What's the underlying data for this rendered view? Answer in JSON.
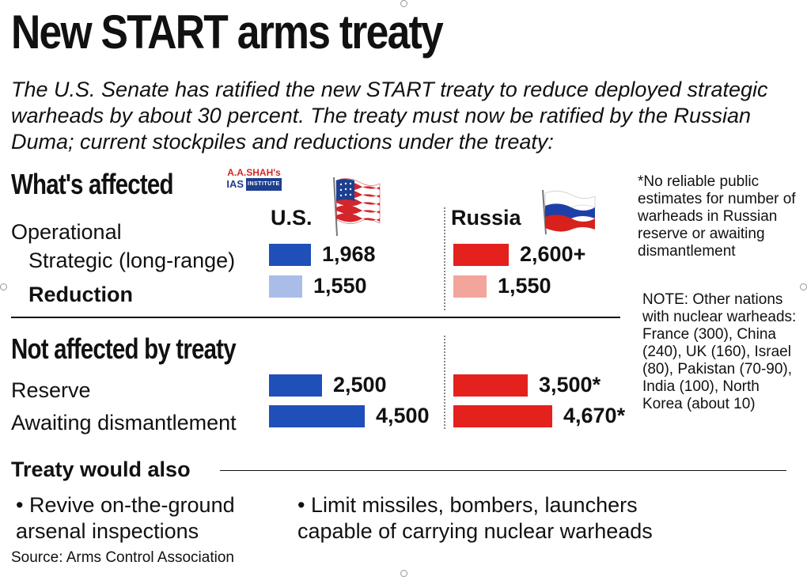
{
  "title": "New START arms treaty",
  "subtitle": "The U.S. Senate has ratified the new START treaty to reduce deployed strategic warheads by about 30 percent. The treaty must now be ratified by the Russian Duma; current stockpiles and reductions under the treaty:",
  "watermark": {
    "line1": "A.A.SHAH's",
    "line2a": "IAS",
    "line2b": "INSTITUTE"
  },
  "columns": {
    "us": "U.S.",
    "russia": "Russia"
  },
  "icons": {
    "us_flag": "us-flag-icon",
    "russia_flag": "russia-flag-icon"
  },
  "colors": {
    "us": "#1f4fb8",
    "us_light": "#a9bde8",
    "russia": "#e4211d",
    "russia_light": "#f3a59c"
  },
  "sections": {
    "affected": "What's affected",
    "not_affected": "Not affected by treaty",
    "also": "Treaty would also"
  },
  "labels": {
    "operational": "Operational",
    "strategic": "Strategic (long-range)",
    "reduction": "Reduction",
    "reserve": "Reserve",
    "awaiting": "Awaiting dismantlement"
  },
  "chart_data": {
    "type": "bar",
    "categories": [
      "Operational Strategic (long-range)",
      "Reduction",
      "Reserve",
      "Awaiting dismantlement"
    ],
    "series": [
      {
        "name": "U.S.",
        "values": [
          1968,
          1550,
          2500,
          4500
        ],
        "labels": [
          "1,968",
          "1,550",
          "2,500",
          "4,500"
        ]
      },
      {
        "name": "Russia",
        "values": [
          2600,
          1550,
          3500,
          4670
        ],
        "labels": [
          "2,600+",
          "1,550",
          "3,500*",
          "4,670*"
        ]
      }
    ]
  },
  "notes": {
    "asterisk": "*No reliable public estimates for number of warheads in Russian reserve or awaiting dismantlement",
    "other": "NOTE: Other nations with nuclear warheads: France (300), China (240), UK (160), Israel (80), Pakistan (70-90), India (100), North Korea (about 10)"
  },
  "bullets": [
    "• Revive on-the-ground arsenal inspections",
    "• Limit missiles, bombers, launchers capable of carrying nuclear warheads"
  ],
  "source": "Source: Arms Control Association"
}
